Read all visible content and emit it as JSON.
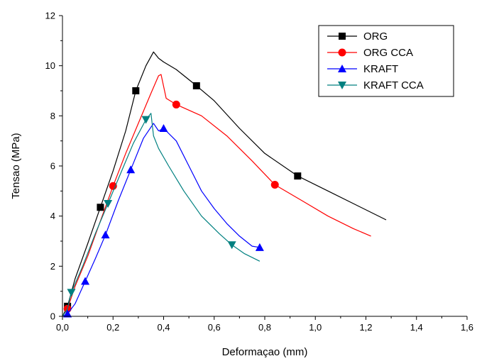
{
  "chart_data": {
    "type": "line",
    "title": "",
    "xlabel": "Deformaçao (mm)",
    "ylabel": "Tensao (MPa)",
    "xlim": [
      0,
      1.6
    ],
    "ylim": [
      0,
      12
    ],
    "xticks": [
      0,
      0.2,
      0.4,
      0.6,
      0.8,
      1.0,
      1.2,
      1.4,
      1.6
    ],
    "xtick_labels": [
      "0,0",
      "0,2",
      "0,4",
      "0,6",
      "0,8",
      "1,0",
      "1,2",
      "1,4",
      "1,6"
    ],
    "yticks": [
      0,
      2,
      4,
      6,
      8,
      10,
      12
    ],
    "ytick_labels": [
      "0",
      "2",
      "4",
      "6",
      "8",
      "10",
      "12"
    ],
    "legend_position": "top-right",
    "series": [
      {
        "name": "ORG",
        "color": "#000000",
        "marker": "square",
        "x": [
          0.0,
          0.02,
          0.05,
          0.1,
          0.15,
          0.2,
          0.25,
          0.29,
          0.33,
          0.36,
          0.38,
          0.4,
          0.45,
          0.53,
          0.6,
          0.7,
          0.8,
          0.93,
          1.05,
          1.15,
          1.28
        ],
        "y": [
          0.0,
          0.4,
          1.5,
          2.9,
          4.35,
          5.8,
          7.4,
          9.0,
          10.0,
          10.55,
          10.3,
          10.15,
          9.85,
          9.2,
          8.6,
          7.5,
          6.5,
          5.6,
          5.0,
          4.5,
          3.85
        ],
        "markers_x": [
          0.02,
          0.15,
          0.29,
          0.53,
          0.93
        ],
        "markers_y": [
          0.4,
          4.35,
          9.0,
          9.2,
          5.6
        ]
      },
      {
        "name": "ORG CCA",
        "color": "#ff0000",
        "marker": "circle",
        "x": [
          0.0,
          0.02,
          0.05,
          0.1,
          0.15,
          0.2,
          0.25,
          0.3,
          0.35,
          0.38,
          0.39,
          0.41,
          0.45,
          0.55,
          0.65,
          0.75,
          0.84,
          0.95,
          1.05,
          1.15,
          1.22
        ],
        "y": [
          0.0,
          0.3,
          1.2,
          2.4,
          3.8,
          5.2,
          6.5,
          7.7,
          8.9,
          9.6,
          9.65,
          8.7,
          8.45,
          8.0,
          7.2,
          6.2,
          5.25,
          4.6,
          4.0,
          3.5,
          3.2
        ],
        "markers_x": [
          0.02,
          0.2,
          0.45,
          0.84
        ],
        "markers_y": [
          0.3,
          5.2,
          8.45,
          5.25
        ]
      },
      {
        "name": "KRAFT",
        "color": "#0000ff",
        "marker": "triangle-up",
        "x": [
          0.0,
          0.02,
          0.05,
          0.09,
          0.13,
          0.17,
          0.22,
          0.27,
          0.32,
          0.36,
          0.38,
          0.4,
          0.45,
          0.5,
          0.55,
          0.6,
          0.65,
          0.7,
          0.75,
          0.78
        ],
        "y": [
          0.0,
          0.1,
          0.5,
          1.4,
          2.3,
          3.25,
          4.6,
          5.85,
          7.1,
          7.7,
          7.4,
          7.5,
          7.0,
          6.0,
          5.0,
          4.3,
          3.7,
          3.2,
          2.8,
          2.75
        ],
        "markers_x": [
          0.02,
          0.09,
          0.17,
          0.27,
          0.4,
          0.78
        ],
        "markers_y": [
          0.1,
          1.4,
          3.25,
          5.85,
          7.5,
          2.75
        ]
      },
      {
        "name": "KRAFT CCA",
        "color": "#008080",
        "marker": "triangle-down",
        "x": [
          0.0,
          0.02,
          0.035,
          0.08,
          0.13,
          0.18,
          0.23,
          0.28,
          0.33,
          0.35,
          0.36,
          0.38,
          0.42,
          0.48,
          0.55,
          0.62,
          0.67,
          0.72,
          0.78
        ],
        "y": [
          0.0,
          0.3,
          0.95,
          2.0,
          3.3,
          4.5,
          5.7,
          6.9,
          7.85,
          8.1,
          7.2,
          6.7,
          6.0,
          5.0,
          4.0,
          3.3,
          2.85,
          2.5,
          2.2
        ],
        "markers_x": [
          0.035,
          0.18,
          0.33,
          0.67
        ],
        "markers_y": [
          0.95,
          4.5,
          7.85,
          2.85
        ]
      }
    ]
  }
}
